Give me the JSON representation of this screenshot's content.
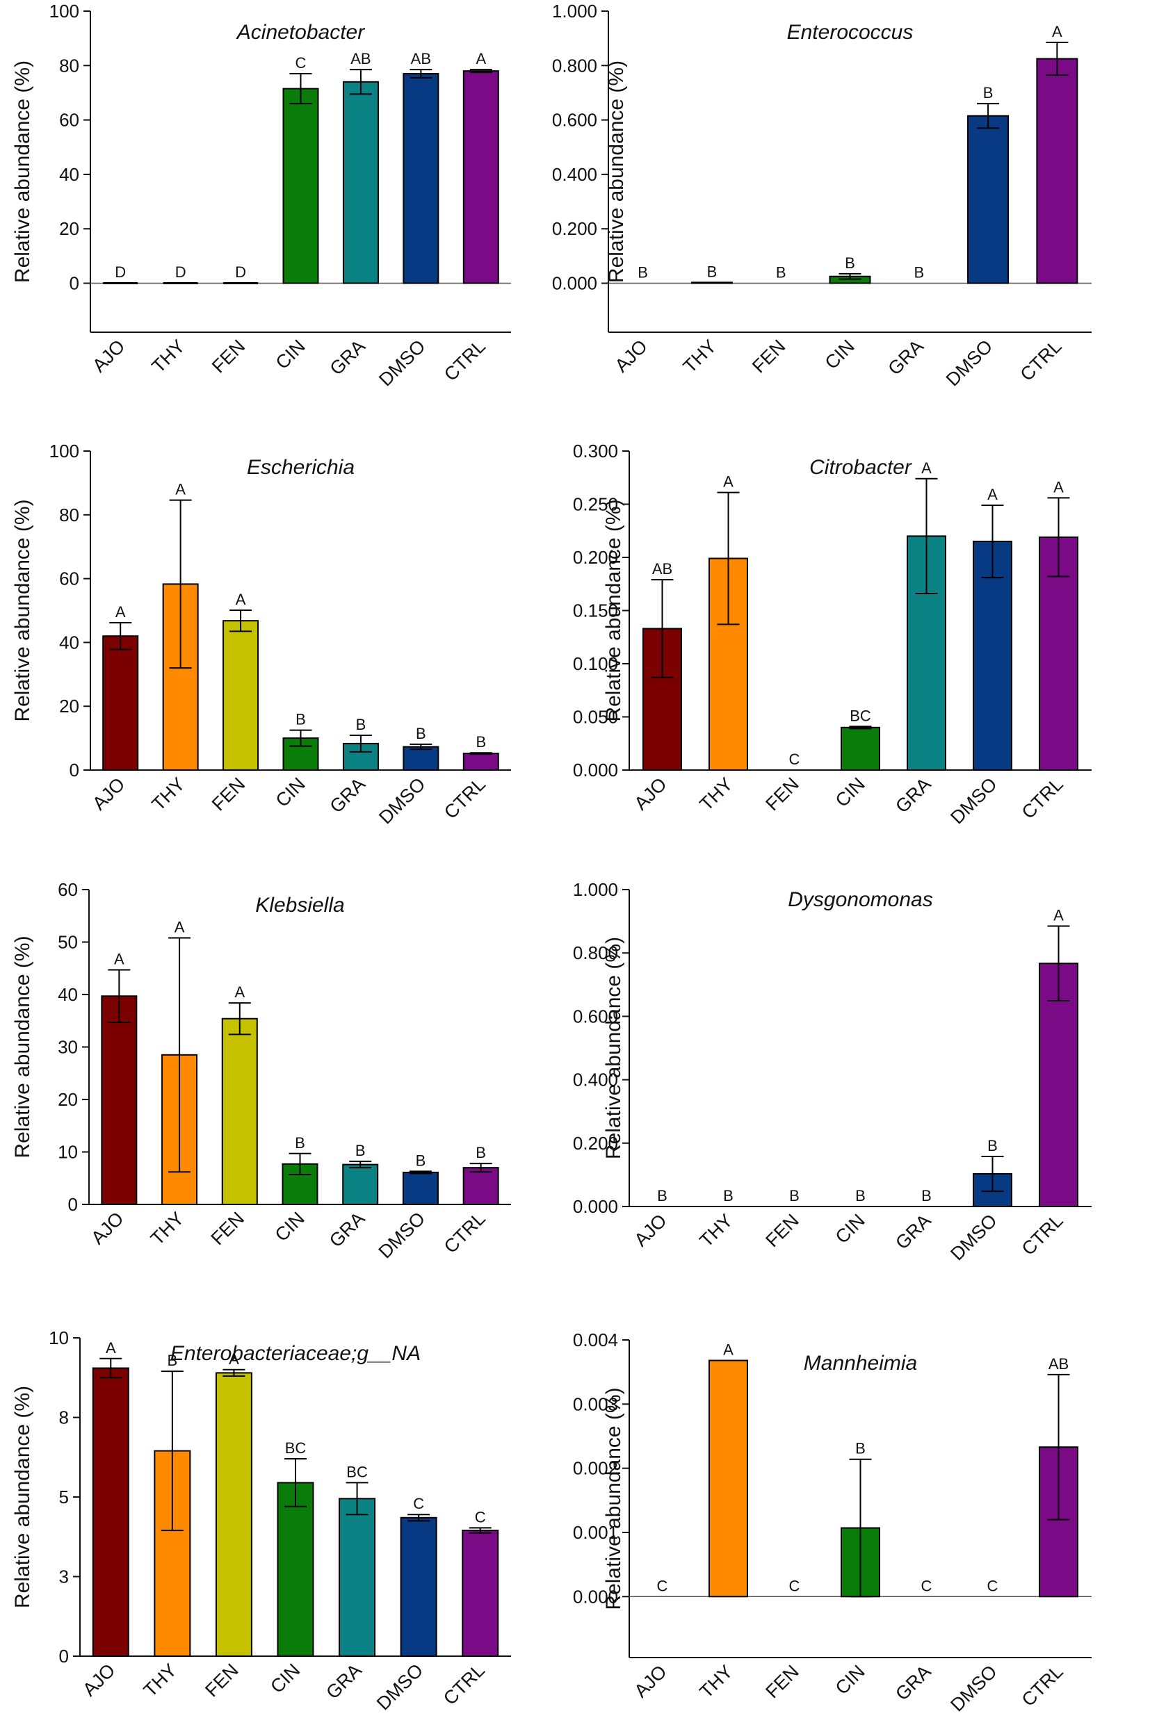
{
  "colors": {
    "AJO": "#7b0000",
    "THY": "#ff8a00",
    "FEN": "#c6c200",
    "CIN": "#0a7c0a",
    "GRA": "#0b8284",
    "DMSO": "#073a82",
    "CTRL": "#7a0a86"
  },
  "chart_data": [
    {
      "type": "bar",
      "title": "Acinetobacter",
      "ylabel": "Relative abundance (%)",
      "categories": [
        "AJO",
        "THY",
        "FEN",
        "CIN",
        "GRA",
        "DMSO",
        "CTRL"
      ],
      "values": [
        0.1,
        0.1,
        0.1,
        71.5,
        74.0,
        77.0,
        78.0
      ],
      "errors": [
        0,
        0,
        0,
        5.5,
        4.5,
        1.5,
        0.5
      ],
      "letters": [
        "D",
        "D",
        "D",
        "C",
        "AB",
        "AB",
        "A"
      ],
      "ylim": [
        -18,
        100
      ],
      "yticks": [
        "0",
        "20",
        "40",
        "60",
        "80",
        "100"
      ]
    },
    {
      "type": "bar",
      "title": "Enterococcus",
      "ylabel": "Relative abundance (%)",
      "categories": [
        "AJO",
        "THY",
        "FEN",
        "CIN",
        "GRA",
        "DMSO",
        "CTRL"
      ],
      "values": [
        0,
        0.003,
        0,
        0.025,
        0,
        0.615,
        0.825
      ],
      "errors": [
        0,
        0,
        0,
        0.01,
        0,
        0.045,
        0.06
      ],
      "letters": [
        "B",
        "B",
        "B",
        "B",
        "B",
        "B",
        "A"
      ],
      "ylim": [
        -0.18,
        1.0
      ],
      "yticks": [
        "0.000",
        "0.200",
        "0.400",
        "0.600",
        "0.800",
        "1.000"
      ]
    },
    {
      "type": "bar",
      "title": "Escherichia",
      "ylabel": "Relative abundance (%)",
      "categories": [
        "AJO",
        "THY",
        "FEN",
        "CIN",
        "GRA",
        "DMSO",
        "CTRL"
      ],
      "values": [
        42.0,
        58.3,
        46.8,
        10.0,
        8.3,
        7.3,
        5.2
      ],
      "errors": [
        4.2,
        26.3,
        3.3,
        2.5,
        2.6,
        0.8,
        0.2
      ],
      "letters": [
        "A",
        "A",
        "A",
        "B",
        "B",
        "B",
        "B"
      ],
      "ylim": [
        0,
        100
      ],
      "yticks": [
        "0",
        "20",
        "40",
        "60",
        "80",
        "100"
      ]
    },
    {
      "type": "bar",
      "title": "Citrobacter",
      "ylabel": "Relative abundance (%)",
      "categories": [
        "AJO",
        "THY",
        "FEN",
        "CIN",
        "GRA",
        "DMSO",
        "CTRL"
      ],
      "values": [
        0.133,
        0.199,
        0,
        0.04,
        0.22,
        0.215,
        0.219
      ],
      "errors": [
        0.046,
        0.062,
        0,
        0.001,
        0.054,
        0.034,
        0.037
      ],
      "letters": [
        "AB",
        "A",
        "C",
        "BC",
        "A",
        "A",
        "A"
      ],
      "ylim": [
        0,
        0.3
      ],
      "yticks": [
        "0.000",
        "0.050",
        "0.100",
        "0.150",
        "0.200",
        "0.250",
        "0.300"
      ]
    },
    {
      "type": "bar",
      "title": "Klebsiella",
      "ylabel": "Relative abundance (%)",
      "categories": [
        "AJO",
        "THY",
        "FEN",
        "CIN",
        "GRA",
        "DMSO",
        "CTRL"
      ],
      "values": [
        39.7,
        28.5,
        35.4,
        7.7,
        7.6,
        6.1,
        7.0
      ],
      "errors": [
        5.0,
        22.3,
        3.0,
        2.0,
        0.6,
        0.2,
        0.8
      ],
      "letters": [
        "A",
        "A",
        "A",
        "B",
        "B",
        "B",
        "B"
      ],
      "ylim": [
        0,
        60
      ],
      "yticks": [
        "0",
        "10",
        "20",
        "30",
        "40",
        "50",
        "60"
      ]
    },
    {
      "type": "bar",
      "title": "Dysgonomonas",
      "ylabel": "Relative abundance (%)",
      "categories": [
        "AJO",
        "THY",
        "FEN",
        "CIN",
        "GRA",
        "DMSO",
        "CTRL"
      ],
      "values": [
        0,
        0,
        0,
        0,
        0,
        0.103,
        0.767
      ],
      "errors": [
        0,
        0,
        0,
        0,
        0,
        0.055,
        0.118
      ],
      "letters": [
        "B",
        "B",
        "B",
        "B",
        "B",
        "B",
        "A"
      ],
      "ylim": [
        0,
        1.0
      ],
      "yticks": [
        "0.000",
        "0.200",
        "0.400",
        "0.600",
        "0.800",
        "1.000"
      ]
    },
    {
      "type": "bar",
      "title": "Enterobacteriaceae;g__NA",
      "ylabel": "Relative abundance (%)",
      "categories": [
        "AJO",
        "THY",
        "FEN",
        "CIN",
        "GRA",
        "DMSO",
        "CTRL"
      ],
      "values": [
        9.05,
        6.45,
        8.9,
        5.45,
        4.95,
        4.35,
        3.95
      ],
      "errors": [
        0.3,
        2.5,
        0.1,
        0.75,
        0.5,
        0.1,
        0.08
      ],
      "letters": [
        "A",
        "B",
        "A",
        "BC",
        "BC",
        "C",
        "C"
      ],
      "ylim": [
        0,
        10
      ],
      "yticks": [
        "0",
        "3",
        "5",
        "8",
        "10"
      ],
      "ytick_values": [
        0,
        2.5,
        5,
        7.5,
        10
      ]
    },
    {
      "type": "bar",
      "title": "Mannheimia",
      "ylabel": "Relative abundance (%)",
      "categories": [
        "AJO",
        "THY",
        "FEN",
        "CIN",
        "GRA",
        "DMSO",
        "CTRL"
      ],
      "values": [
        0,
        0.00368,
        0,
        0.00107,
        0,
        0,
        0.00233
      ],
      "errors": [
        0,
        0,
        0,
        0.00107,
        0,
        0,
        0.00113
      ],
      "letters": [
        "C",
        "A",
        "C",
        "B",
        "C",
        "C",
        "AB"
      ],
      "ylim": [
        -0.00095,
        0.004
      ],
      "yticks": [
        "0.000",
        "0.001",
        "0.002",
        "0.003",
        "0.004"
      ]
    }
  ]
}
